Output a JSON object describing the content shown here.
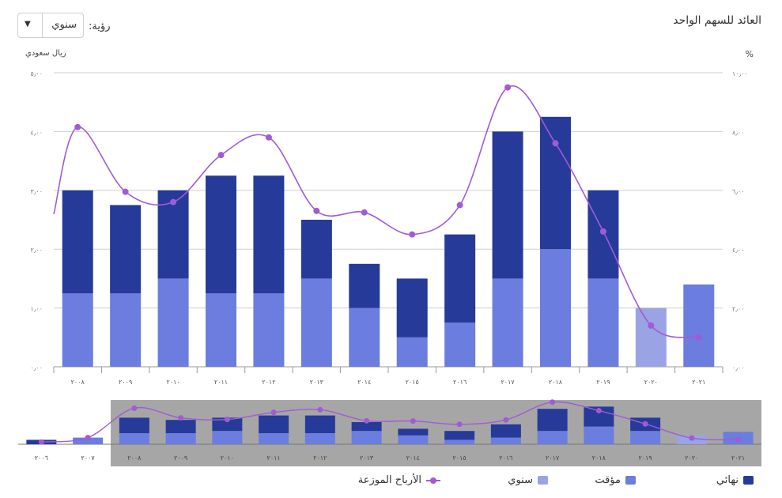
{
  "header": {
    "title": "العائد للسهم الواحد",
    "view_label": "رؤية:",
    "view_value": "سنوي",
    "unit_left": "ريال سعودي",
    "unit_right": "%"
  },
  "colors": {
    "final": "#263a99",
    "interim": "#6b7dde",
    "annual": "#9aa3e4",
    "dividends": "#a05bd6",
    "navigator_bg": "#a6a6a6"
  },
  "chart_data": {
    "type": "bar",
    "categories": [
      "٢٠٠٨",
      "٢٠٠٩",
      "٢٠١٠",
      "٢٠١١",
      "٢٠١٢",
      "٢٠١٣",
      "٢٠١٤",
      "٢٠١٥",
      "٢٠١٦",
      "٢٠١٧",
      "٢٠١٨",
      "٢٠١٩",
      "٢٠٢٠",
      "٢٠٢١"
    ],
    "series": [
      {
        "name": "مؤقت",
        "values": [
          1.25,
          1.25,
          1.5,
          1.25,
          1.25,
          1.5,
          1.0,
          0.5,
          0.75,
          1.5,
          2.0,
          1.5,
          0,
          1.4
        ]
      },
      {
        "name": "نهائي",
        "values": [
          1.75,
          1.5,
          1.5,
          2.0,
          2.0,
          1.0,
          0.75,
          1.0,
          1.5,
          2.5,
          2.25,
          1.5,
          0,
          0
        ]
      },
      {
        "name": "سنوي",
        "values": [
          0,
          0,
          0,
          0,
          0,
          0,
          0,
          0,
          0,
          0,
          0,
          0,
          1.0,
          0
        ]
      }
    ],
    "line": {
      "name": "الأرباح الموزعة",
      "axis": "right",
      "values": [
        8.15,
        5.95,
        5.6,
        7.2,
        7.8,
        5.3,
        5.25,
        4.5,
        5.5,
        9.5,
        7.6,
        4.6,
        1.4,
        1.0
      ]
    },
    "y_left": {
      "label": "ريال سعودي",
      "ticks": [
        "٠٫٠٠",
        "١٫٠٠",
        "٢٫٠٠",
        "٣٫٠٠",
        "٤٫٠٠",
        "٥٫٠٠"
      ],
      "range": [
        0,
        5
      ]
    },
    "y_right": {
      "label": "%",
      "ticks": [
        "٠٫٠٠",
        "٢٫٠٠",
        "٤٫٠٠",
        "٦٫٠٠",
        "٨٫٠٠",
        "١٠٫٠٠"
      ],
      "range": [
        0,
        10
      ]
    },
    "navigator": {
      "categories": [
        "٢٠٠٦",
        "٢٠٠٧",
        "٢٠٠٨",
        "٢٠٠٩",
        "٢٠١٠",
        "٢٠١١",
        "٢٠١٢",
        "٢٠١٣",
        "٢٠١٤",
        "٢٠١٥",
        "٢٠١٦",
        "٢٠١٧",
        "٢٠١٨",
        "٢٠١٩",
        "٢٠٢٠",
        "٢٠٢١"
      ],
      "final": [
        0.5,
        0,
        1.75,
        1.5,
        1.5,
        2.0,
        2.0,
        1.0,
        0.75,
        1.0,
        1.5,
        2.5,
        2.25,
        1.5,
        0,
        0
      ],
      "interim": [
        0,
        0.75,
        1.25,
        1.25,
        1.5,
        1.25,
        1.25,
        1.5,
        1.0,
        0.5,
        0.75,
        1.5,
        2.0,
        1.5,
        0,
        1.4
      ],
      "annual": [
        0,
        0,
        0,
        0,
        0,
        0,
        0,
        0,
        0,
        0,
        0,
        0,
        0,
        0,
        1.0,
        0
      ],
      "line": [
        0.5,
        1.5,
        8.15,
        5.95,
        5.6,
        7.2,
        7.8,
        5.3,
        5.25,
        4.5,
        5.5,
        9.5,
        7.6,
        4.6,
        1.4,
        1.0
      ]
    }
  },
  "legend": {
    "final": "نهائي",
    "interim": "مؤقت",
    "annual": "سنوي",
    "dividends": "الأرباح الموزعة"
  }
}
